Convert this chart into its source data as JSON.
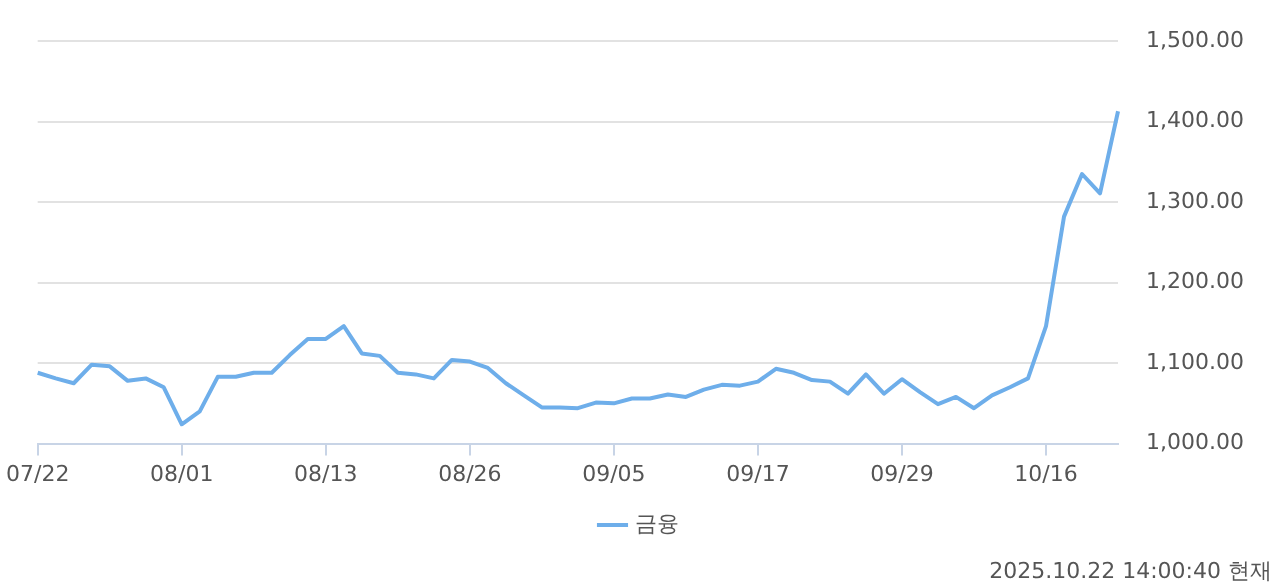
{
  "chart_data": {
    "type": "line",
    "categories": [
      "07/22",
      null,
      null,
      null,
      null,
      null,
      null,
      null,
      "08/01",
      null,
      null,
      null,
      null,
      null,
      null,
      null,
      "08/13",
      null,
      null,
      null,
      null,
      null,
      null,
      null,
      "08/26",
      null,
      null,
      null,
      null,
      null,
      null,
      null,
      "09/05",
      null,
      null,
      null,
      null,
      null,
      null,
      null,
      "09/17",
      null,
      null,
      null,
      null,
      null,
      null,
      null,
      "09/29",
      null,
      null,
      null,
      null,
      null,
      null,
      null,
      "10/16",
      null,
      null,
      null,
      null
    ],
    "series": [
      {
        "name": "금융",
        "color": "#6eaeea",
        "values": [
          1088,
          1081,
          1075,
          1098,
          1096,
          1078,
          1081,
          1070,
          1024,
          1040,
          1083,
          1083,
          1088,
          1088,
          1110,
          1130,
          1130,
          1146,
          1112,
          1109,
          1088,
          1086,
          1081,
          1104,
          1102,
          1094,
          1075,
          1060,
          1045,
          1045,
          1044,
          1051,
          1050,
          1056,
          1056,
          1061,
          1058,
          1067,
          1073,
          1072,
          1077,
          1093,
          1088,
          1079,
          1077,
          1062,
          1086,
          1062,
          1080,
          1064,
          1049,
          1058,
          1044,
          1060,
          1070,
          1081,
          1146,
          1282,
          1335,
          1311,
          1413
        ]
      }
    ],
    "ylim": [
      1000,
      1500
    ],
    "yticks": [
      {
        "value": 1000,
        "label": "1,000.00"
      },
      {
        "value": 1100,
        "label": "1,100.00"
      },
      {
        "value": 1200,
        "label": "1,200.00"
      },
      {
        "value": 1300,
        "label": "1,300.00"
      },
      {
        "value": 1400,
        "label": "1,400.00"
      },
      {
        "value": 1500,
        "label": "1,500.00"
      }
    ],
    "grid": "y",
    "legend": "bottom",
    "marker": "none",
    "line_style": "solid",
    "annotations": [
      "2025.10.22 14:00:40 현재"
    ]
  }
}
